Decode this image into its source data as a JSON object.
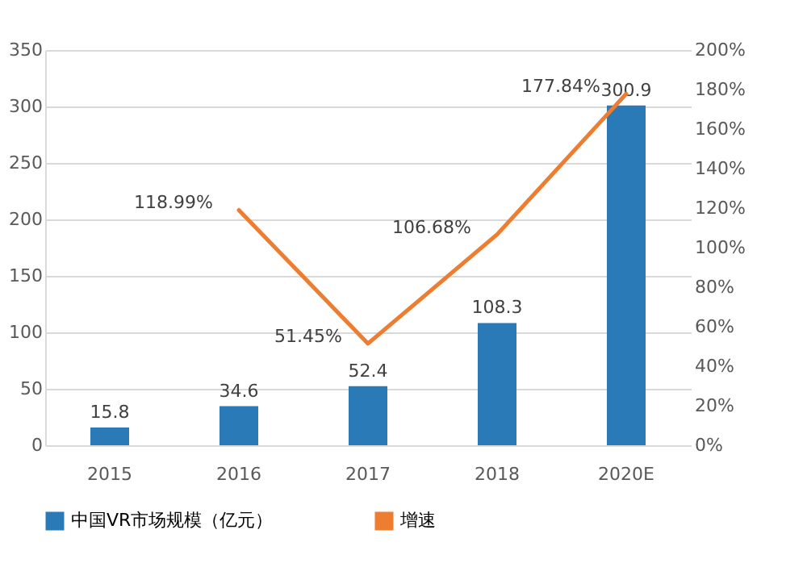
{
  "chart_data": {
    "type": "bar",
    "categories": [
      "2015",
      "2016",
      "2017",
      "2018",
      "2020E"
    ],
    "series": [
      {
        "name": "中国VR市场规模（亿元）",
        "color": "#2a7ab8",
        "values": [
          15.8,
          34.6,
          52.4,
          108.3,
          300.9
        ],
        "value_labels": [
          "15.8",
          "34.6",
          "52.4",
          "108.3",
          "300.9"
        ]
      },
      {
        "name": "增速",
        "type": "line",
        "axis": "y2",
        "color": "#ed7d31",
        "values": [
          null,
          118.99,
          51.45,
          106.68,
          177.84
        ],
        "value_labels": [
          null,
          "118.99%",
          "51.45%",
          "106.68%",
          "177.84%"
        ]
      }
    ],
    "ylim": [
      0,
      350
    ],
    "yticks": [
      0,
      50,
      100,
      150,
      200,
      250,
      300,
      350
    ],
    "y2lim": [
      0,
      200
    ],
    "y2ticks": [
      {
        "value": 0,
        "label": "0%"
      },
      {
        "value": 20,
        "label": "20%"
      },
      {
        "value": 40,
        "label": "40%"
      },
      {
        "value": 60,
        "label": "60%"
      },
      {
        "value": 80,
        "label": "80%"
      },
      {
        "value": 100,
        "label": "100%"
      },
      {
        "value": 120,
        "label": "120%"
      },
      {
        "value": 140,
        "label": "140%"
      },
      {
        "value": 160,
        "label": "160%"
      },
      {
        "value": 180,
        "label": "180%"
      },
      {
        "value": 200,
        "label": "200%"
      }
    ],
    "grid": "y",
    "legend": "bottom"
  }
}
